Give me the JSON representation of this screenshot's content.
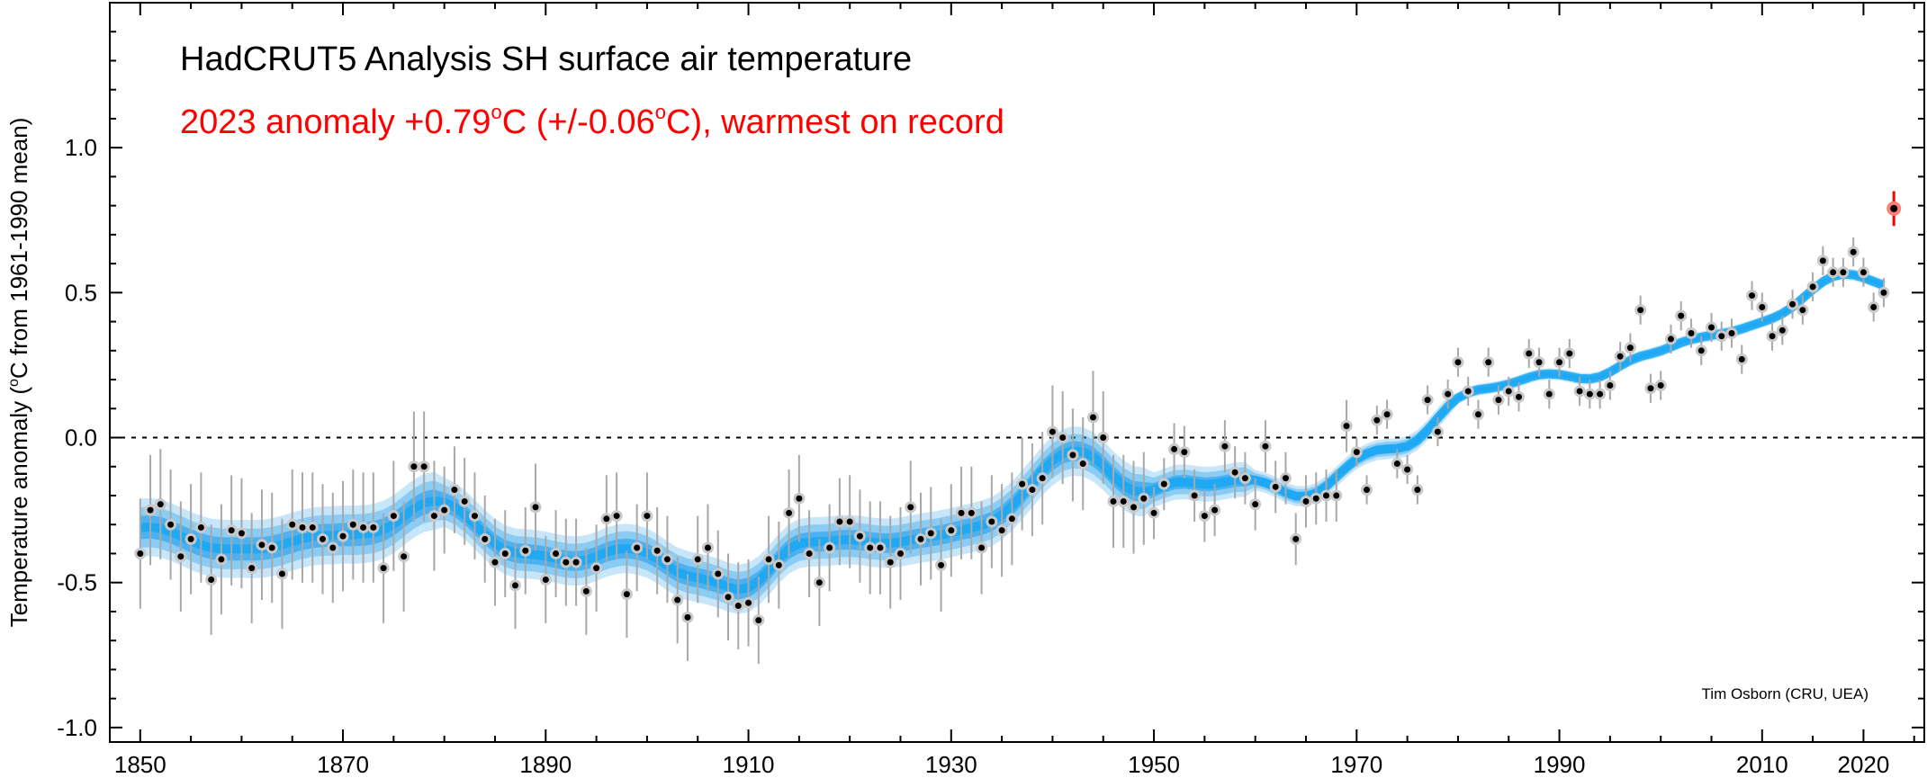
{
  "chart_data": {
    "type": "scatter",
    "title": "HadCRUT5 Analysis SH surface air temperature",
    "subtitle_prefix": "2023 anomaly +0.79",
    "subtitle_mid": "C (+/-0.06",
    "subtitle_suffix": "C), warmest on record",
    "subtitle_degree": "o",
    "ylabel_prefix": "Temperature anomaly (",
    "ylabel_degree": "o",
    "ylabel_suffix": "C from 1961-1990 mean)",
    "credit": "Tim Osborn (CRU, UEA)",
    "xlim": [
      1847,
      2026
    ],
    "ylim": [
      -1.05,
      1.5
    ],
    "xticks": [
      1850,
      1870,
      1890,
      1910,
      1930,
      1950,
      1970,
      1990,
      2010,
      2020
    ],
    "yticks": [
      1.0,
      0.5,
      0.0,
      -0.5,
      -1.0
    ],
    "ytick_labels": [
      "1.0",
      "0.5",
      "0.0",
      "-0.5",
      "-1.0"
    ],
    "zero_line": "dashed",
    "colors": {
      "band": "#1e9bea",
      "points": "#000000",
      "point_halo": "#c8c8c8",
      "errorbars": "#a8a8a8",
      "highlight": "#ff0000",
      "highlight_fill": "#ff7f73"
    },
    "highlight_year": 2023,
    "highlight_value": 0.79,
    "highlight_uncertainty": 0.06,
    "series": [
      {
        "x": [
          1850,
          1851,
          1852,
          1853,
          1854,
          1855,
          1856,
          1857,
          1858,
          1859,
          1860,
          1861,
          1862,
          1863,
          1864,
          1865,
          1866,
          1867,
          1868,
          1869,
          1870,
          1871,
          1872,
          1873,
          1874,
          1875,
          1876,
          1877,
          1878,
          1879,
          1880,
          1881,
          1882,
          1883,
          1884,
          1885,
          1886,
          1887,
          1888,
          1889,
          1890,
          1891,
          1892,
          1893,
          1894,
          1895,
          1896,
          1897,
          1898,
          1899,
          1900,
          1901,
          1902,
          1903,
          1904,
          1905,
          1906,
          1907,
          1908,
          1909,
          1910,
          1911,
          1912,
          1913,
          1914,
          1915,
          1916,
          1917,
          1918,
          1919,
          1920,
          1921,
          1922,
          1923,
          1924,
          1925,
          1926,
          1927,
          1928,
          1929,
          1930,
          1931,
          1932,
          1933,
          1934,
          1935,
          1936,
          1937,
          1938,
          1939,
          1940,
          1941,
          1942,
          1943,
          1944,
          1945,
          1946,
          1947,
          1948,
          1949,
          1950,
          1951,
          1952,
          1953,
          1954,
          1955,
          1956,
          1957,
          1958,
          1959,
          1960,
          1961,
          1962,
          1963,
          1964,
          1965,
          1966,
          1967,
          1968,
          1969,
          1970,
          1971,
          1972,
          1973,
          1974,
          1975,
          1976,
          1977,
          1978,
          1979,
          1980,
          1981,
          1982,
          1983,
          1984,
          1985,
          1986,
          1987,
          1988,
          1989,
          1990,
          1991,
          1992,
          1993,
          1994,
          1995,
          1996,
          1997,
          1998,
          1999,
          2000,
          2001,
          2002,
          2003,
          2004,
          2005,
          2006,
          2007,
          2008,
          2009,
          2010,
          2011,
          2012,
          2013,
          2014,
          2015,
          2016,
          2017,
          2018,
          2019,
          2020,
          2021,
          2022,
          2023
        ],
        "y": [
          -0.4,
          -0.25,
          -0.23,
          -0.3,
          -0.41,
          -0.35,
          -0.31,
          -0.49,
          -0.42,
          -0.32,
          -0.33,
          -0.45,
          -0.37,
          -0.38,
          -0.47,
          -0.3,
          -0.31,
          -0.31,
          -0.35,
          -0.38,
          -0.34,
          -0.3,
          -0.31,
          -0.31,
          -0.45,
          -0.27,
          -0.41,
          -0.1,
          -0.1,
          -0.27,
          -0.25,
          -0.18,
          -0.22,
          -0.27,
          -0.35,
          -0.43,
          -0.4,
          -0.51,
          -0.39,
          -0.24,
          -0.49,
          -0.4,
          -0.43,
          -0.43,
          -0.53,
          -0.45,
          -0.28,
          -0.27,
          -0.54,
          -0.38,
          -0.27,
          -0.39,
          -0.42,
          -0.56,
          -0.62,
          -0.42,
          -0.38,
          -0.47,
          -0.55,
          -0.58,
          -0.57,
          -0.63,
          -0.42,
          -0.44,
          -0.26,
          -0.21,
          -0.4,
          -0.5,
          -0.38,
          -0.29,
          -0.29,
          -0.34,
          -0.38,
          -0.38,
          -0.43,
          -0.4,
          -0.24,
          -0.35,
          -0.33,
          -0.44,
          -0.32,
          -0.26,
          -0.26,
          -0.38,
          -0.29,
          -0.32,
          -0.28,
          -0.16,
          -0.18,
          -0.14,
          0.02,
          0.0,
          -0.06,
          -0.09,
          0.07,
          0.0,
          -0.22,
          -0.22,
          -0.24,
          -0.21,
          -0.26,
          -0.16,
          -0.04,
          -0.05,
          -0.2,
          -0.27,
          -0.25,
          -0.03,
          -0.12,
          -0.14,
          -0.23,
          -0.03,
          -0.17,
          -0.14,
          -0.35,
          -0.22,
          -0.21,
          -0.2,
          -0.2,
          0.04,
          -0.05,
          -0.18,
          0.06,
          0.08,
          -0.09,
          -0.11,
          -0.18,
          0.13,
          0.02,
          0.15,
          0.26,
          0.16,
          0.08,
          0.26,
          0.13,
          0.16,
          0.14,
          0.29,
          0.26,
          0.15,
          0.26,
          0.29,
          0.16,
          0.15,
          0.15,
          0.18,
          0.28,
          0.31,
          0.44,
          0.17,
          0.18,
          0.34,
          0.42,
          0.36,
          0.3,
          0.38,
          0.35,
          0.36,
          0.27,
          0.49,
          0.45,
          0.35,
          0.37,
          0.46,
          0.44,
          0.52,
          0.61,
          0.57,
          0.57,
          0.64,
          0.57,
          0.45,
          0.5,
          0.79
        ]
      }
    ]
  }
}
